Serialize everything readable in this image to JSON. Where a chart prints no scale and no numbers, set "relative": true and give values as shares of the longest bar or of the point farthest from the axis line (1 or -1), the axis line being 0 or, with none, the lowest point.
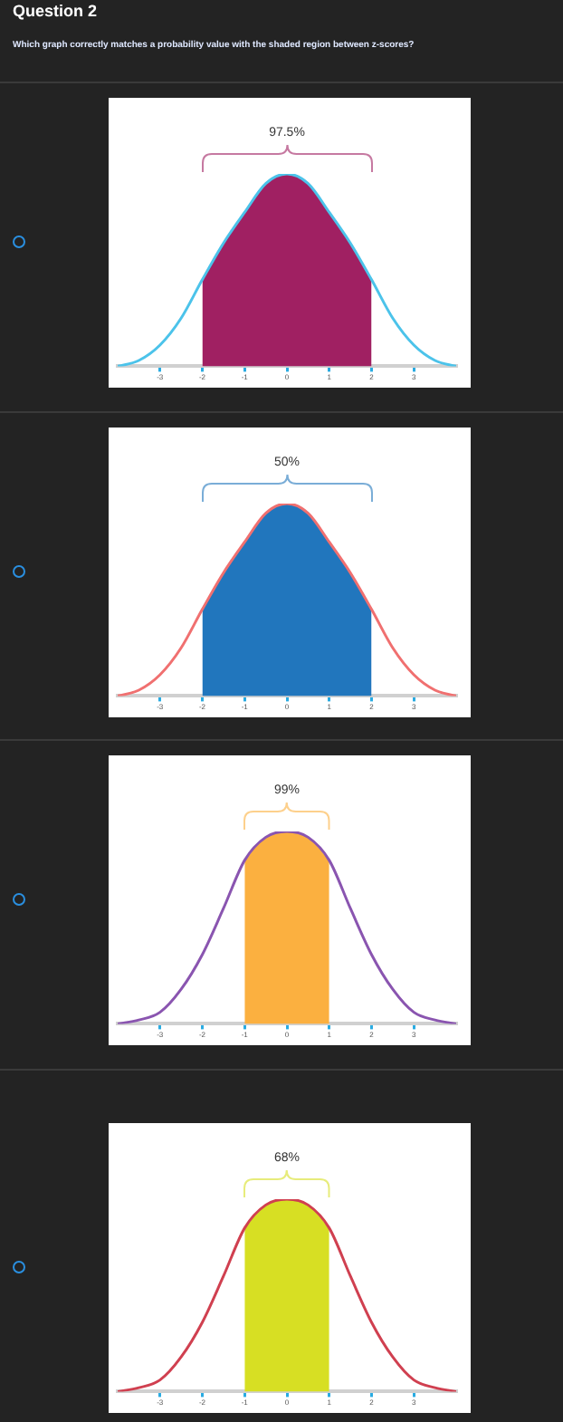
{
  "chart_data": [
    {
      "type": "line",
      "title": "Question 2",
      "subtitle": "Which graph correctly matches a probability value with the shaded region between z-scores?",
      "relative": true,
      "marker": "none",
      "xlim": [
        -4,
        4
      ],
      "xticks": [
        -3,
        -2,
        -1,
        0,
        1,
        2,
        3
      ],
      "annotations": [
        "97.5%"
      ],
      "series": [
        {
          "type": "line",
          "color": "#4cc3ea",
          "x": [
            -4,
            -3.5,
            -3,
            -2.5,
            -2,
            -1.5,
            -1,
            -0.5,
            0,
            0.5,
            1,
            1.5,
            2,
            2.5,
            3,
            3.5,
            4
          ],
          "values": [
            0,
            0.03,
            0.11,
            0.25,
            0.45,
            0.64,
            0.8,
            0.95,
            1,
            0.95,
            0.8,
            0.64,
            0.45,
            0.25,
            0.11,
            0.03,
            0
          ]
        },
        {
          "type": "area",
          "color": "#a02062",
          "x": [
            -2,
            -1.5,
            -1,
            -0.5,
            0,
            0.5,
            1,
            1.5,
            2
          ],
          "values": [
            0.45,
            0.64,
            0.8,
            0.95,
            1,
            0.95,
            0.8,
            0.64,
            0.45
          ]
        }
      ]
    },
    {
      "type": "line",
      "relative": true,
      "marker": "none",
      "xlim": [
        -4,
        4
      ],
      "xticks": [
        -3,
        -2,
        -1,
        0,
        1,
        2,
        3
      ],
      "annotations": [
        "50%"
      ],
      "series": [
        {
          "type": "line",
          "color": "#f07070",
          "x": [
            -4,
            -3.5,
            -3,
            -2.5,
            -2,
            -1.5,
            -1,
            -0.5,
            0,
            0.5,
            1,
            1.5,
            2,
            2.5,
            3,
            3.5,
            4
          ],
          "values": [
            0,
            0.03,
            0.11,
            0.25,
            0.45,
            0.64,
            0.8,
            0.95,
            1,
            0.95,
            0.8,
            0.64,
            0.45,
            0.25,
            0.11,
            0.03,
            0
          ]
        },
        {
          "type": "area",
          "color": "#2176bd",
          "x": [
            -2,
            -1.5,
            -1,
            -0.5,
            0,
            0.5,
            1,
            1.5,
            2
          ],
          "values": [
            0.45,
            0.64,
            0.8,
            0.95,
            1,
            0.95,
            0.8,
            0.64,
            0.45
          ]
        }
      ]
    },
    {
      "type": "line",
      "relative": true,
      "marker": "none",
      "xlim": [
        -4,
        4
      ],
      "xticks": [
        -3,
        -2,
        -1,
        0,
        1,
        2,
        3
      ],
      "annotations": [
        "99%"
      ],
      "series": [
        {
          "type": "line",
          "color": "#8a55b0",
          "x": [
            -4,
            -3.5,
            -3,
            -2.5,
            -2,
            -1.5,
            -1,
            -0.5,
            0,
            0.5,
            1,
            1.5,
            2,
            2.5,
            3,
            3.5,
            4
          ],
          "values": [
            0,
            0.02,
            0.06,
            0.18,
            0.36,
            0.6,
            0.85,
            0.97,
            1,
            0.97,
            0.85,
            0.6,
            0.36,
            0.18,
            0.06,
            0.02,
            0
          ]
        },
        {
          "type": "area",
          "color": "#fbb040",
          "x": [
            -1,
            -0.5,
            0,
            0.5,
            1
          ],
          "values": [
            0.85,
            0.97,
            1,
            0.97,
            0.85
          ]
        }
      ]
    },
    {
      "type": "line",
      "relative": true,
      "marker": "none",
      "xlim": [
        -4,
        4
      ],
      "xticks": [
        -3,
        -2,
        -1,
        0,
        1,
        2,
        3
      ],
      "annotations": [
        "68%"
      ],
      "series": [
        {
          "type": "line",
          "color": "#d04050",
          "x": [
            -4,
            -3.5,
            -3,
            -2.5,
            -2,
            -1.5,
            -1,
            -0.5,
            0,
            0.5,
            1,
            1.5,
            2,
            2.5,
            3,
            3.5,
            4
          ],
          "values": [
            0,
            0.02,
            0.06,
            0.18,
            0.36,
            0.6,
            0.85,
            0.97,
            1,
            0.97,
            0.85,
            0.6,
            0.36,
            0.18,
            0.06,
            0.02,
            0
          ]
        },
        {
          "type": "area",
          "color": "#d7df23",
          "x": [
            -1,
            -0.5,
            0,
            0.5,
            1
          ],
          "values": [
            0.85,
            0.97,
            1,
            0.97,
            0.85
          ]
        }
      ]
    }
  ]
}
